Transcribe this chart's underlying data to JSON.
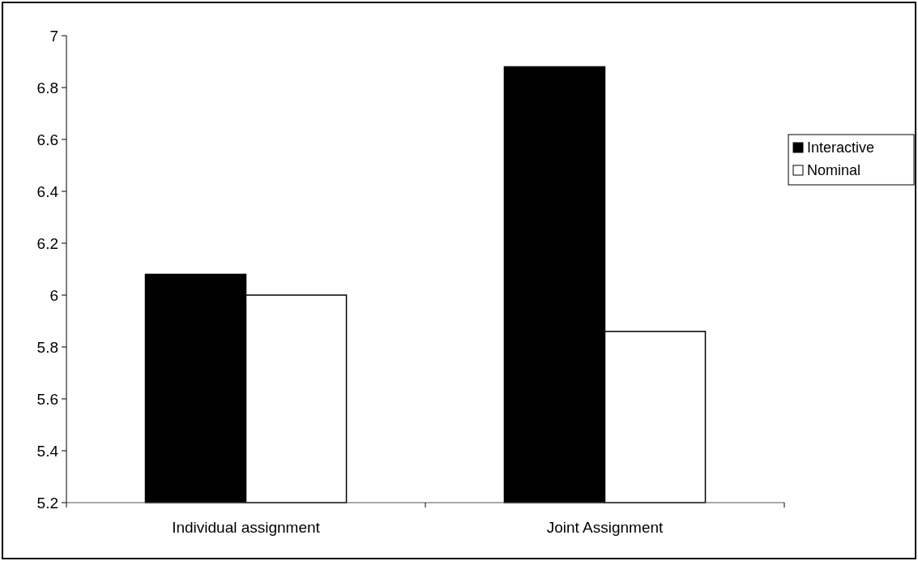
{
  "chart_data": {
    "type": "bar",
    "categories": [
      "Individual assignment",
      "Joint Assignment"
    ],
    "series": [
      {
        "name": "Interactive",
        "color": "#000000",
        "values": [
          6.08,
          6.88
        ]
      },
      {
        "name": "Nominal",
        "color": "#ffffff",
        "values": [
          6.0,
          5.86
        ]
      }
    ],
    "ylim": [
      5.2,
      7
    ],
    "yticks": [
      {
        "value": 5.2,
        "label": "5.2"
      },
      {
        "value": 5.4,
        "label": "5.4"
      },
      {
        "value": 5.6,
        "label": "5.6"
      },
      {
        "value": 5.8,
        "label": "5.8"
      },
      {
        "value": 6,
        "label": "6"
      },
      {
        "value": 6.2,
        "label": "6.2"
      },
      {
        "value": 6.4,
        "label": "6.4"
      },
      {
        "value": 6.6,
        "label": "6.6"
      },
      {
        "value": 6.8,
        "label": "6.8"
      },
      {
        "value": 7,
        "label": "7"
      }
    ],
    "grid": false,
    "legend": "right"
  }
}
